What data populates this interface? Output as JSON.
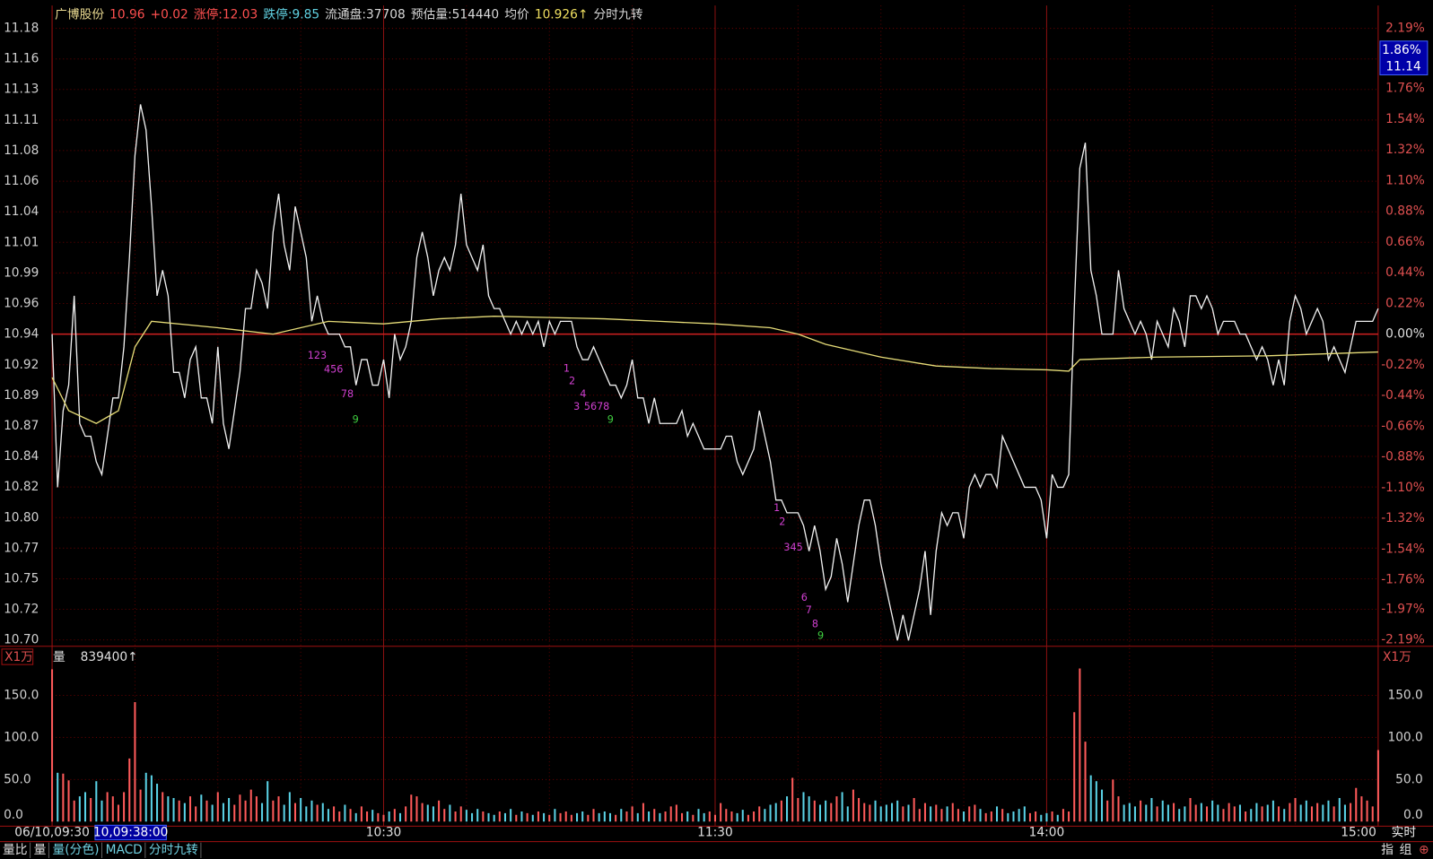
{
  "header": [
    {
      "text": "广博股份",
      "color": "#e8d890"
    },
    {
      "text": "10.96",
      "color": "#ff5050"
    },
    {
      "text": "+0.02",
      "color": "#ff5050"
    },
    {
      "text": "涨停:12.03",
      "color": "#ff5050"
    },
    {
      "text": "跌停:9.85",
      "color": "#60d0e0"
    },
    {
      "text": "流通盘:37708",
      "color": "#d8d8d8"
    },
    {
      "text": "预估量:514440",
      "color": "#d8d8d8"
    },
    {
      "text": "均价",
      "color": "#d8d8d8"
    },
    {
      "text": "10.926↑",
      "color": "#f0e060"
    },
    {
      "text": "分时九转",
      "color": "#d8d8d8"
    }
  ],
  "cursor": {
    "time": "10,09:38:00",
    "percent": "1.86%",
    "price": "11.14"
  },
  "mode": "实时",
  "tabs": [
    "量比",
    "量",
    "量(分色)",
    "MACD",
    "分时九转"
  ],
  "corner_buttons": [
    "指",
    "组",
    "⊕"
  ],
  "chart_data": [
    {
      "type": "line",
      "xlim": [
        0,
        240
      ],
      "xticks": [
        {
          "value": 0,
          "label": "06/10,09:30"
        },
        {
          "value": 60,
          "label": "10:30"
        },
        {
          "value": 120,
          "label": "11:30"
        },
        {
          "value": 180,
          "label": "14:00"
        },
        {
          "value": 240,
          "label": "15:00"
        }
      ],
      "ylim": [
        10.7004,
        11.1796
      ],
      "yticks": [
        {
          "value": 11.1796,
          "label": "11.18"
        },
        {
          "value": 11.1556,
          "label": "11.16"
        },
        {
          "value": 11.1317,
          "label": "11.13"
        },
        {
          "value": 11.1077,
          "label": "11.11"
        },
        {
          "value": 11.0838,
          "label": "11.08"
        },
        {
          "value": 11.0598,
          "label": "11.06"
        },
        {
          "value": 11.0358,
          "label": "11.04"
        },
        {
          "value": 11.0119,
          "label": "11.01"
        },
        {
          "value": 10.9879,
          "label": "10.99"
        },
        {
          "value": 10.964,
          "label": "10.96"
        },
        10.94,
        {
          "value": 10.916,
          "label": "10.92"
        },
        {
          "value": 10.8921,
          "label": "10.89"
        },
        {
          "value": 10.8681,
          "label": "10.87"
        },
        {
          "value": 10.8442,
          "label": "10.84"
        },
        {
          "value": 10.8202,
          "label": "10.82"
        },
        {
          "value": 10.7962,
          "label": "10.80"
        },
        {
          "value": 10.7723,
          "label": "10.77"
        },
        {
          "value": 10.7483,
          "label": "10.75"
        },
        {
          "value": 10.7244,
          "label": "10.72"
        },
        {
          "value": 10.7004,
          "label": "10.70"
        }
      ],
      "y2lim": [
        -2.19,
        2.19
      ],
      "y2ticks": [
        {
          "value": 2.19,
          "label": "2.19%"
        },
        {
          "value": 1.76,
          "label": "1.76%"
        },
        {
          "value": 1.54,
          "label": "1.54%"
        },
        {
          "value": 1.32,
          "label": "1.32%"
        },
        {
          "value": 1.1,
          "label": "1.10%"
        },
        {
          "value": 0.88,
          "label": "0.88%"
        },
        {
          "value": 0.66,
          "label": "0.66%"
        },
        {
          "value": 0.44,
          "label": "0.44%"
        },
        {
          "value": 0.22,
          "label": "0.22%"
        },
        {
          "value": 0,
          "label": "0.00%"
        },
        {
          "value": -0.22,
          "label": "-0.22%"
        },
        {
          "value": -0.44,
          "label": "-0.44%"
        },
        {
          "value": -0.66,
          "label": "-0.66%"
        },
        {
          "value": -0.88,
          "label": "-0.88%"
        },
        {
          "value": -1.1,
          "label": "-1.10%"
        },
        {
          "value": -1.32,
          "label": "-1.32%"
        },
        {
          "value": -1.54,
          "label": "-1.54%"
        },
        {
          "value": -1.76,
          "label": "-1.76%"
        },
        {
          "value": -1.97,
          "label": "-1.97%"
        },
        {
          "value": -2.19,
          "label": "-2.19%"
        }
      ],
      "grid": true,
      "series": [
        {
          "color": "#f0f0f0",
          "values": [
            10.94,
            10.82,
            10.88,
            10.9,
            10.97,
            10.87,
            10.86,
            10.86,
            10.84,
            10.83,
            10.86,
            10.89,
            10.89,
            10.93,
            11.0,
            11.08,
            11.12,
            11.1,
            11.04,
            10.97,
            10.99,
            10.97,
            10.91,
            10.91,
            10.89,
            10.92,
            10.93,
            10.89,
            10.89,
            10.87,
            10.93,
            10.87,
            10.85,
            10.88,
            10.91,
            10.96,
            10.96,
            10.99,
            10.98,
            10.96,
            11.02,
            11.05,
            11.01,
            10.99,
            11.04,
            11.02,
            11.0,
            10.95,
            10.97,
            10.95,
            10.94,
            10.94,
            10.94,
            10.93,
            10.93,
            10.9,
            10.92,
            10.92,
            10.9,
            10.9,
            10.92,
            10.89,
            10.94,
            10.92,
            10.93,
            10.95,
            11.0,
            11.02,
            11.0,
            10.97,
            10.99,
            11.0,
            10.99,
            11.01,
            11.05,
            11.01,
            11.0,
            10.99,
            11.01,
            10.97,
            10.96,
            10.96,
            10.95,
            10.94,
            10.95,
            10.94,
            10.95,
            10.94,
            10.95,
            10.93,
            10.95,
            10.94,
            10.95,
            10.95,
            10.95,
            10.93,
            10.92,
            10.92,
            10.93,
            10.92,
            10.91,
            10.9,
            10.9,
            10.89,
            10.9,
            10.92,
            10.89,
            10.89,
            10.87,
            10.89,
            10.87,
            10.87,
            10.87,
            10.87,
            10.88,
            10.86,
            10.87,
            10.86,
            10.85,
            10.85,
            10.85,
            10.85,
            10.86,
            10.86,
            10.84,
            10.83,
            10.84,
            10.85,
            10.88,
            10.86,
            10.84,
            10.81,
            10.81,
            10.8,
            10.8,
            10.8,
            10.79,
            10.77,
            10.79,
            10.77,
            10.74,
            10.75,
            10.78,
            10.76,
            10.73,
            10.76,
            10.79,
            10.81,
            10.81,
            10.79,
            10.76,
            10.74,
            10.72,
            10.7,
            10.72,
            10.7,
            10.72,
            10.74,
            10.77,
            10.72,
            10.77,
            10.8,
            10.79,
            10.8,
            10.8,
            10.78,
            10.82,
            10.83,
            10.82,
            10.83,
            10.83,
            10.82,
            10.86,
            10.85,
            10.84,
            10.83,
            10.82,
            10.82,
            10.82,
            10.81,
            10.78,
            10.83,
            10.82,
            10.82,
            10.83,
            10.96,
            11.07,
            11.09,
            10.99,
            10.97,
            10.94,
            10.94,
            10.94,
            10.99,
            10.96,
            10.95,
            10.94,
            10.95,
            10.94,
            10.92,
            10.95,
            10.94,
            10.93,
            10.96,
            10.95,
            10.93,
            10.97,
            10.97,
            10.96,
            10.97,
            10.96,
            10.94,
            10.95,
            10.95,
            10.95,
            10.94,
            10.94,
            10.93,
            10.92,
            10.93,
            10.92,
            10.9,
            10.92,
            10.9,
            10.95,
            10.97,
            10.96,
            10.94,
            10.95,
            10.96,
            10.95,
            10.92,
            10.93,
            10.92,
            10.91,
            10.93,
            10.95,
            10.95,
            10.95,
            10.95,
            10.96
          ]
        },
        {
          "color": "#e6dc78",
          "x": [
            0,
            3,
            8,
            12,
            15,
            18,
            30,
            40,
            50,
            60,
            70,
            80,
            90,
            100,
            110,
            120,
            130,
            135,
            140,
            150,
            160,
            170,
            180,
            184,
            186,
            200,
            220,
            240
          ],
          "values": [
            10.906,
            10.88,
            10.87,
            10.88,
            10.93,
            10.95,
            10.945,
            10.94,
            10.95,
            10.948,
            10.952,
            10.954,
            10.953,
            10.952,
            10.95,
            10.948,
            10.945,
            10.94,
            10.932,
            10.922,
            10.915,
            10.913,
            10.912,
            10.911,
            10.92,
            10.922,
            10.923,
            10.926
          ]
        }
      ],
      "annotations": [
        {
          "text": "123",
          "color": "#d040d0"
        },
        {
          "text": "456",
          "color": "#d040d0"
        },
        {
          "text": "78",
          "color": "#d040d0"
        },
        {
          "text": "9",
          "color": "#40d040"
        },
        {
          "text": "1",
          "color": "#d040d0"
        },
        {
          "text": "2",
          "color": "#d040d0"
        },
        {
          "text": "4",
          "color": "#d040d0"
        },
        {
          "text": "3",
          "color": "#d040d0"
        },
        {
          "text": "5678",
          "color": "#d040d0"
        },
        {
          "text": "9",
          "color": "#40d040"
        },
        {
          "text": "1",
          "color": "#d040d0"
        },
        {
          "text": "2",
          "color": "#d040d0"
        },
        {
          "text": "345",
          "color": "#d040d0"
        },
        {
          "text": "6",
          "color": "#d040d0"
        },
        {
          "text": "7",
          "color": "#d040d0"
        },
        {
          "text": "8",
          "color": "#d040d0"
        },
        {
          "text": "9",
          "color": "#40d040"
        }
      ]
    },
    {
      "type": "bar",
      "unit_label": "X1万",
      "title": "量",
      "subtitle": "839400↑",
      "up_color": "#ff5a5a",
      "down_color": "#5ad2e6",
      "ylim": [
        0,
        204
      ],
      "yticks": [
        {
          "value": 0,
          "label": "0.0"
        },
        {
          "value": 50,
          "label": "50.0"
        },
        {
          "value": 100,
          "label": "100.0"
        },
        {
          "value": 150,
          "label": "150.0"
        }
      ],
      "grid": true,
      "values": [
        181,
        58,
        57,
        49,
        25,
        30,
        35,
        28,
        48,
        25,
        35,
        30,
        20,
        35,
        75,
        142,
        38,
        58,
        55,
        45,
        35,
        30,
        28,
        25,
        22,
        30,
        18,
        32,
        25,
        20,
        35,
        22,
        28,
        20,
        32,
        25,
        38,
        30,
        22,
        48,
        25,
        30,
        20,
        35,
        22,
        28,
        18,
        25,
        20,
        22,
        15,
        18,
        12,
        20,
        15,
        10,
        18,
        12,
        14,
        10,
        8,
        12,
        15,
        10,
        18,
        32,
        30,
        22,
        20,
        18,
        25,
        15,
        20,
        12,
        18,
        14,
        10,
        15,
        12,
        10,
        8,
        12,
        10,
        15,
        8,
        12,
        10,
        8,
        12,
        10,
        8,
        15,
        10,
        12,
        8,
        10,
        12,
        8,
        15,
        10,
        12,
        10,
        8,
        15,
        12,
        18,
        10,
        22,
        12,
        15,
        10,
        12,
        18,
        20,
        10,
        12,
        8,
        15,
        10,
        12,
        8,
        22,
        15,
        12,
        10,
        14,
        8,
        12,
        18,
        15,
        20,
        22,
        25,
        30,
        52,
        28,
        35,
        30,
        25,
        20,
        25,
        22,
        30,
        35,
        18,
        38,
        28,
        22,
        20,
        25,
        18,
        20,
        22,
        25,
        18,
        20,
        28,
        15,
        22,
        18,
        20,
        15,
        18,
        22,
        15,
        12,
        18,
        20,
        15,
        10,
        12,
        18,
        15,
        10,
        12,
        15,
        18,
        10,
        12,
        8,
        10,
        12,
        8,
        15,
        12,
        130,
        182,
        95,
        55,
        48,
        38,
        25,
        50,
        30,
        20,
        22,
        18,
        25,
        20,
        28,
        18,
        25,
        20,
        22,
        15,
        18,
        28,
        20,
        22,
        18,
        25,
        20,
        15,
        22,
        18,
        20,
        12,
        15,
        22,
        18,
        20,
        25,
        18,
        15,
        22,
        28,
        20,
        25,
        18,
        22,
        20,
        25,
        18,
        28,
        20,
        22,
        40,
        30,
        25,
        18,
        85
      ]
    }
  ]
}
